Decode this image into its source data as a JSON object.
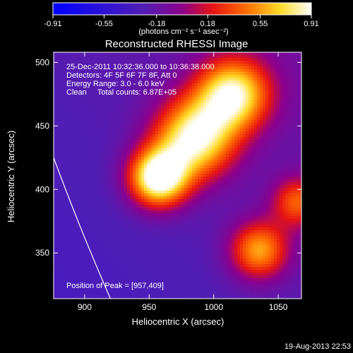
{
  "chart_data": {
    "type": "heatmap",
    "title": "Reconstructed RHESSI Image",
    "xlabel": "Heliocentric X (arcsec)",
    "ylabel": "Heliocentric Y (arcsec)",
    "xlim": [
      876,
      1068
    ],
    "ylim": [
      314,
      508
    ],
    "xticks": [
      900,
      950,
      1000,
      1050
    ],
    "yticks": [
      350,
      400,
      450,
      500
    ],
    "colorbar": {
      "ticks": [
        "-0.91",
        "-0.55",
        "-0.18",
        "0.18",
        "0.55",
        "0.91"
      ],
      "range": [
        -0.91,
        0.91
      ],
      "label": "(photons cm⁻² s⁻¹ asec⁻²)"
    },
    "sources": [
      {
        "x": 957,
        "y": 409,
        "peak": 0.91,
        "sigma": 16
      },
      {
        "x": 985,
        "y": 440,
        "peak": 0.75,
        "sigma": 22
      },
      {
        "x": 1015,
        "y": 475,
        "peak": 0.7,
        "sigma": 20
      },
      {
        "x": 1035,
        "y": 352,
        "peak": 0.45,
        "sigma": 16
      },
      {
        "x": 1065,
        "y": 390,
        "peak": 0.25,
        "sigma": 14
      }
    ],
    "annotations": [
      "25-Dec-2011 10:32:36.000 to 10:36:38.000",
      "Detectors: 4F 5F 6F 7F 8F, Att 0",
      "Energy Range: 3.0 - 6.0 keV",
      "Clean     Total counts: 6.87E+05"
    ],
    "peak_label": "Position of Peak = [957,409]",
    "timestamp": "19-Aug-2013 22:53"
  }
}
